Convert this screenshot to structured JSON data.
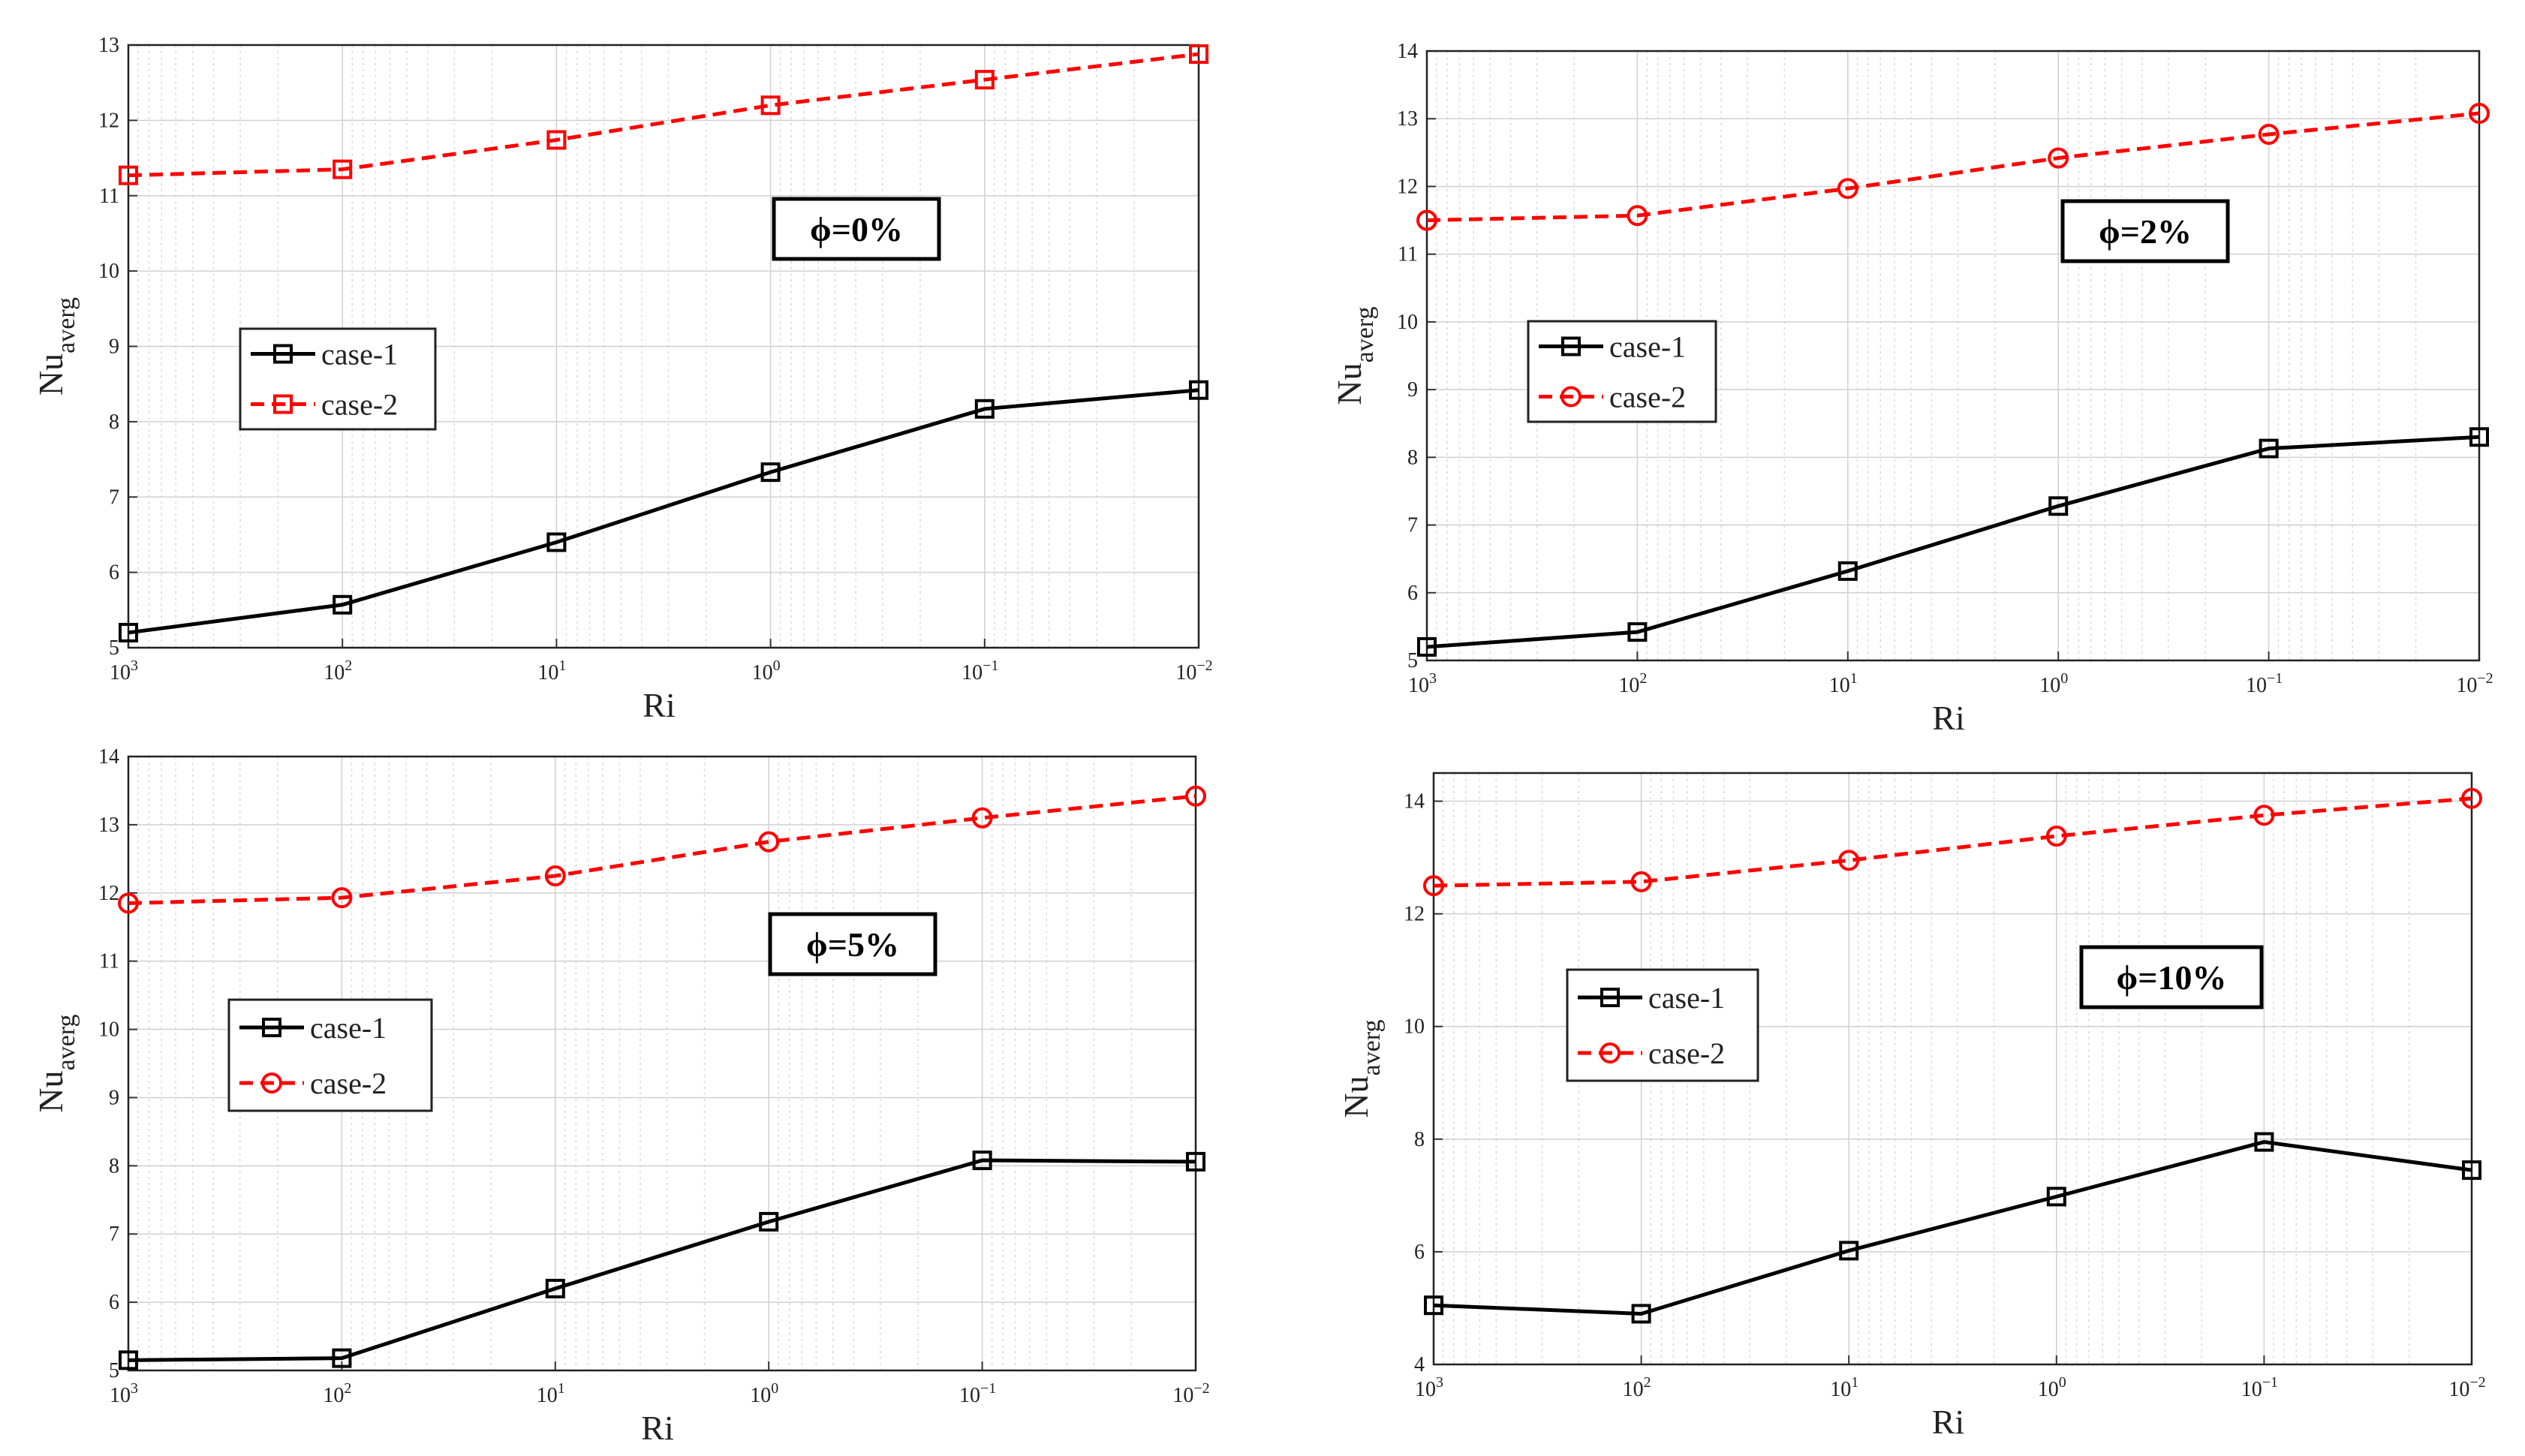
{
  "chart_data": [
    {
      "type": "line",
      "annotation": "ϕ=0%",
      "xlabel": "Ri",
      "ylabel": "Nu",
      "ylabel_sub": "averg",
      "x": [
        1000,
        100,
        10,
        1,
        0.1,
        0.01
      ],
      "xticks": [
        {
          "base": "10",
          "exp": "3"
        },
        {
          "base": "10",
          "exp": "2"
        },
        {
          "base": "10",
          "exp": "1"
        },
        {
          "base": "10",
          "exp": "0"
        },
        {
          "base": "10",
          "exp": "−1"
        },
        {
          "base": "10",
          "exp": "−2"
        }
      ],
      "ylim": [
        5,
        13
      ],
      "yticks": [
        "5",
        "6",
        "7",
        "8",
        "9",
        "10",
        "11",
        "12",
        "13"
      ],
      "grid": true,
      "legend": "middle-left",
      "series": [
        {
          "name": "case-1",
          "color": "#000000",
          "style": "solid",
          "marker": "square",
          "values": [
            5.2,
            5.57,
            6.4,
            7.33,
            8.17,
            8.42
          ]
        },
        {
          "name": "case-2",
          "color": "#ff0000",
          "style": "dashed",
          "marker": "square",
          "values": [
            11.27,
            11.35,
            11.74,
            12.2,
            12.54,
            12.88
          ]
        }
      ]
    },
    {
      "type": "line",
      "annotation": "ϕ=2%",
      "xlabel": "Ri",
      "ylabel": "Nu",
      "ylabel_sub": "averg",
      "x": [
        1000,
        100,
        10,
        1,
        0.1,
        0.01
      ],
      "xticks": [
        {
          "base": "10",
          "exp": "3"
        },
        {
          "base": "10",
          "exp": "2"
        },
        {
          "base": "10",
          "exp": "1"
        },
        {
          "base": "10",
          "exp": "0"
        },
        {
          "base": "10",
          "exp": "−1"
        },
        {
          "base": "10",
          "exp": "−2"
        }
      ],
      "ylim": [
        5,
        14
      ],
      "yticks": [
        "5",
        "6",
        "7",
        "8",
        "9",
        "10",
        "11",
        "12",
        "13",
        "14"
      ],
      "grid": true,
      "legend": "middle-left",
      "series": [
        {
          "name": "case-1",
          "color": "#000000",
          "style": "solid",
          "marker": "square",
          "values": [
            5.2,
            5.42,
            6.32,
            7.28,
            8.13,
            8.3
          ]
        },
        {
          "name": "case-2",
          "color": "#ff0000",
          "style": "dashed",
          "marker": "circle",
          "values": [
            11.5,
            11.57,
            11.97,
            12.42,
            12.77,
            13.08
          ]
        }
      ]
    },
    {
      "type": "line",
      "annotation": "ϕ=5%",
      "xlabel": "Ri",
      "ylabel": "Nu",
      "ylabel_sub": "averg",
      "x": [
        1000,
        100,
        10,
        1,
        0.1,
        0.01
      ],
      "xticks": [
        {
          "base": "10",
          "exp": "3"
        },
        {
          "base": "10",
          "exp": "2"
        },
        {
          "base": "10",
          "exp": "1"
        },
        {
          "base": "10",
          "exp": "0"
        },
        {
          "base": "10",
          "exp": "−1"
        },
        {
          "base": "10",
          "exp": "−2"
        }
      ],
      "ylim": [
        5,
        14
      ],
      "yticks": [
        "5",
        "6",
        "7",
        "8",
        "9",
        "10",
        "11",
        "12",
        "13",
        "14"
      ],
      "grid": true,
      "legend": "middle-left",
      "series": [
        {
          "name": "case-1",
          "color": "#000000",
          "style": "solid",
          "marker": "square",
          "values": [
            5.15,
            5.18,
            6.2,
            7.18,
            8.08,
            8.06
          ]
        },
        {
          "name": "case-2",
          "color": "#ff0000",
          "style": "dashed",
          "marker": "circle",
          "values": [
            11.85,
            11.93,
            12.25,
            12.75,
            13.1,
            13.42
          ]
        }
      ]
    },
    {
      "type": "line",
      "annotation": "ϕ=10%",
      "xlabel": "Ri",
      "ylabel": "Nu",
      "ylabel_sub": "averg",
      "x": [
        1000,
        100,
        10,
        1,
        0.1,
        0.01
      ],
      "xticks": [
        {
          "base": "10",
          "exp": "3"
        },
        {
          "base": "10",
          "exp": "2"
        },
        {
          "base": "10",
          "exp": "1"
        },
        {
          "base": "10",
          "exp": "0"
        },
        {
          "base": "10",
          "exp": "−1"
        },
        {
          "base": "10",
          "exp": "−2"
        }
      ],
      "ylim": [
        4,
        14.5
      ],
      "yticks": [
        "4",
        "6",
        "8",
        "10",
        "12",
        "14"
      ],
      "grid": true,
      "legend": "middle-left",
      "series": [
        {
          "name": "case-1",
          "color": "#000000",
          "style": "solid",
          "marker": "square",
          "values": [
            5.05,
            4.9,
            6.02,
            6.98,
            7.95,
            7.45
          ]
        },
        {
          "name": "case-2",
          "color": "#ff0000",
          "style": "dashed",
          "marker": "circle",
          "values": [
            12.5,
            12.57,
            12.95,
            13.38,
            13.75,
            14.05
          ]
        }
      ]
    }
  ]
}
